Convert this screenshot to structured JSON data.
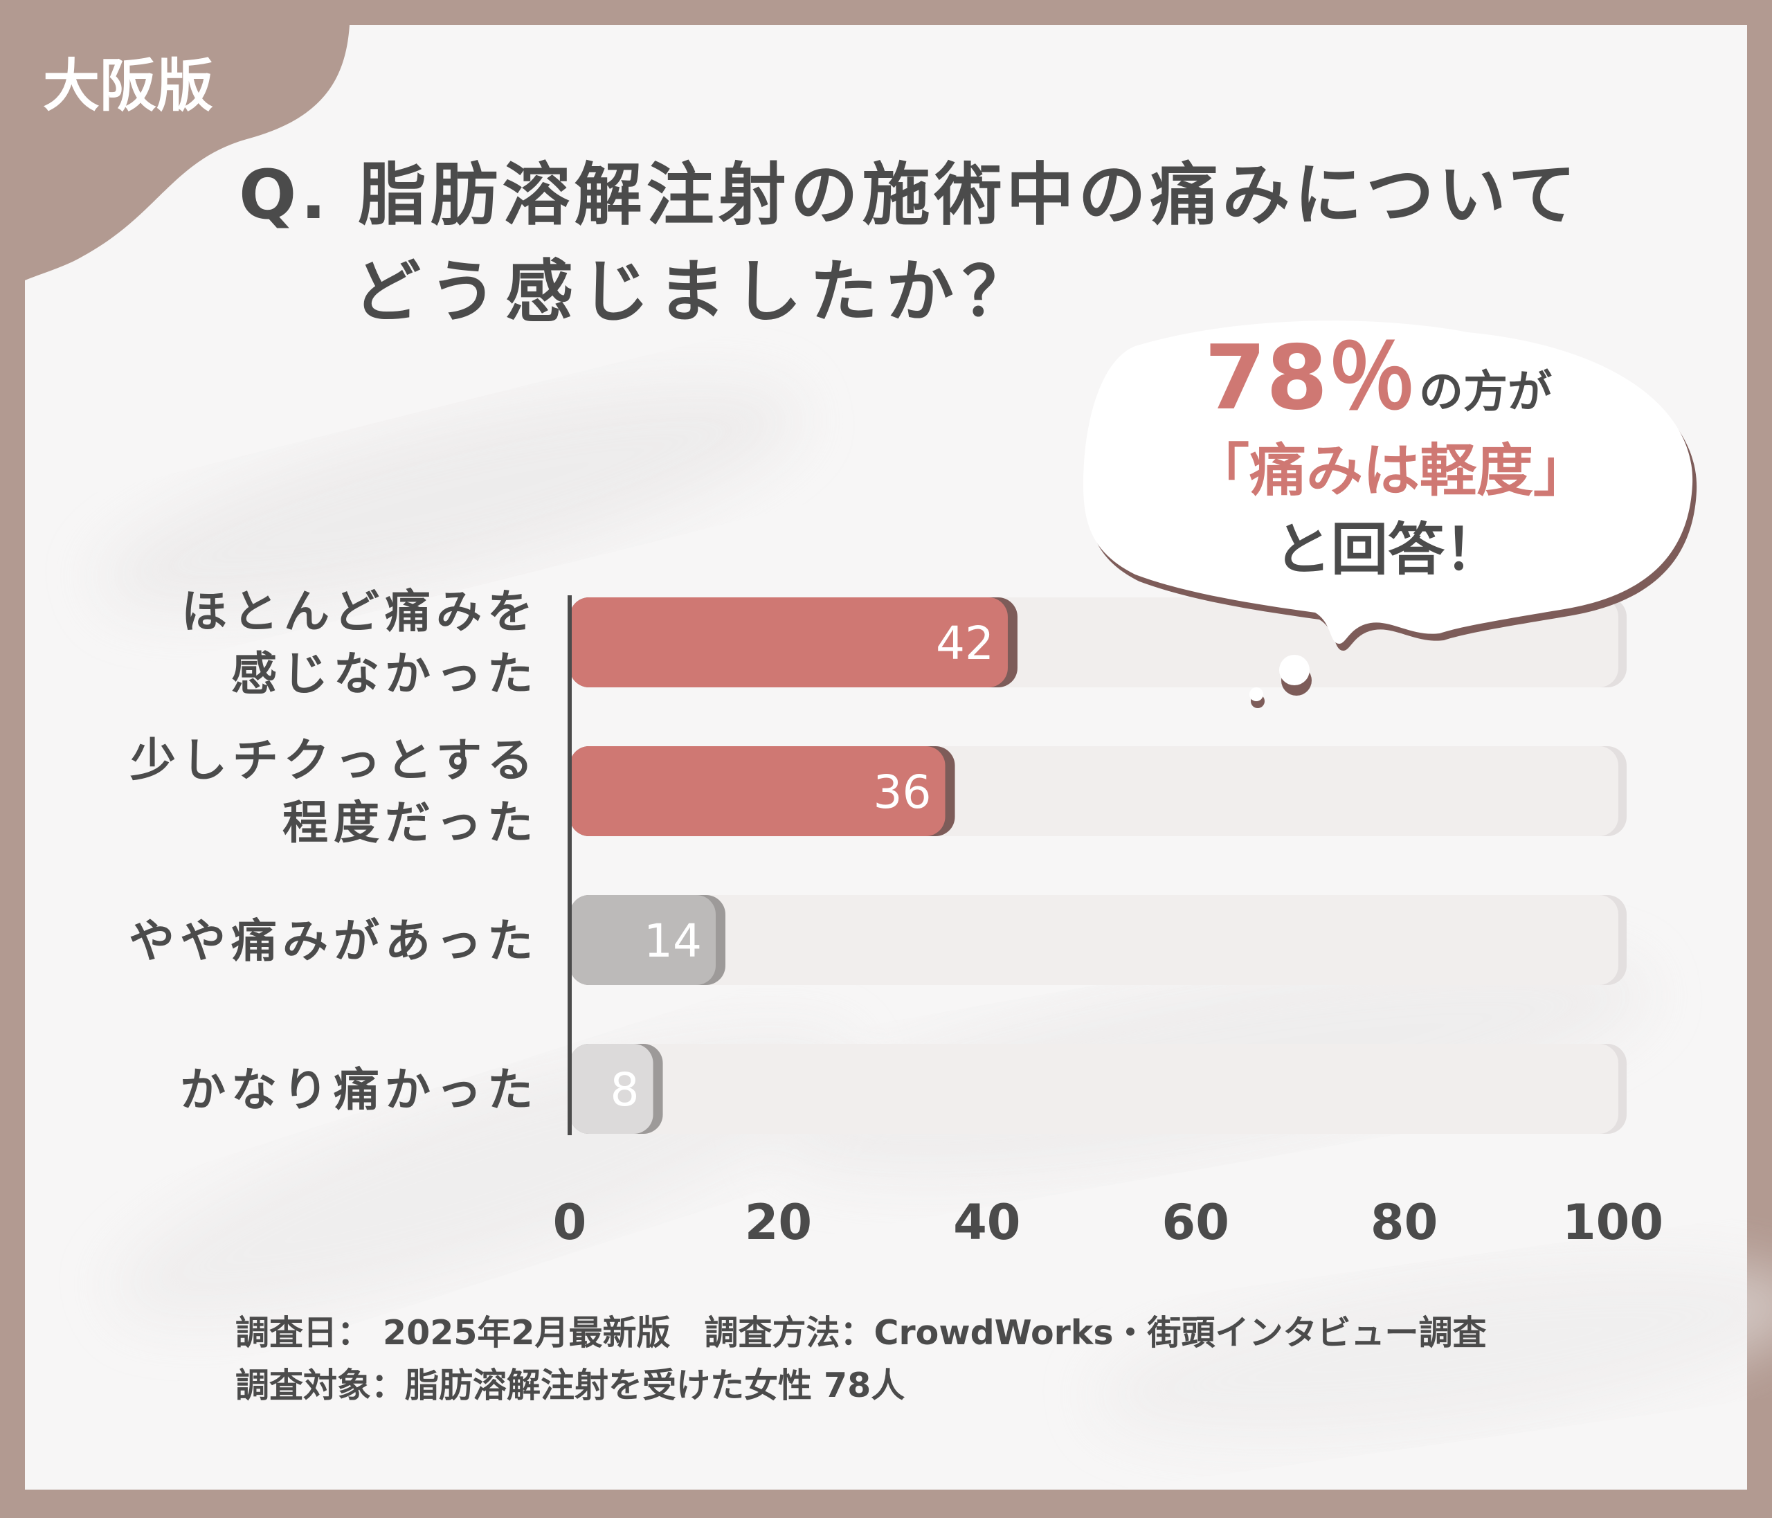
{
  "badge": {
    "label": "大阪版"
  },
  "question": {
    "line1": "Q. 脂肪溶解注射の施術中の痛みについて",
    "line2": "どう感じましたか？"
  },
  "callout": {
    "percent": "78％",
    "percent_suffix": "の方が",
    "highlight": "「痛みは軽度」",
    "tail": "と回答！"
  },
  "footer": {
    "line1": "調査日： 2025年2月最新版　調査方法：CrowdWorks・街頭インタビュー調査",
    "line2": "調査対象：脂肪溶解注射を受けた女性 78人"
  },
  "colors": {
    "frame": "#b29a91",
    "panel": "#f7f6f6",
    "accent_bar": "#cf7873",
    "accent_shadow": "#7d5c59",
    "gray_bar": "#bcbab9",
    "light_gray_bar": "#dcdada",
    "track": "#f1eeed",
    "text": "#4b4b4b",
    "callout_text": "#cf7873"
  },
  "chart_data": {
    "type": "bar",
    "orientation": "horizontal",
    "categories": [
      [
        "ほとんど痛みを",
        "感じなかった"
      ],
      [
        "少しチクっとする",
        "程度だった"
      ],
      [
        "やや痛みがあった"
      ],
      [
        "かなり痛かった"
      ]
    ],
    "values": [
      42,
      36,
      14,
      8
    ],
    "bar_colors": [
      "#cf7873",
      "#cf7873",
      "#bcbab9",
      "#dcdada"
    ],
    "xlim": [
      0,
      100
    ],
    "xticks": [
      0,
      20,
      40,
      60,
      80,
      100
    ],
    "grid": false,
    "legend": "none"
  }
}
